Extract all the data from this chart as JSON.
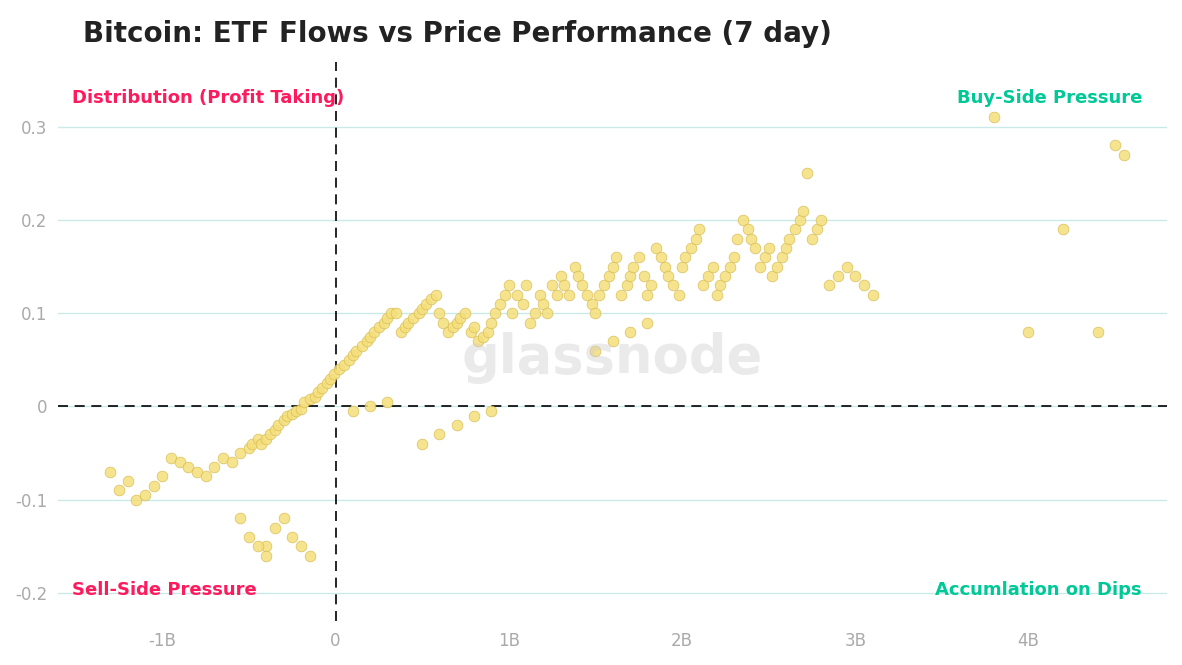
{
  "title": "Bitcoin: ETF Flows vs Price Performance (7 day)",
  "title_fontsize": 20,
  "title_fontweight": "bold",
  "background_color": "#ffffff",
  "grid_color": "#c8ebe8",
  "dot_color": "#f5df7a",
  "dot_edgecolor": "#d4b84a",
  "dot_alpha": 0.85,
  "dot_size": 60,
  "xlim": [
    -1600000000.0,
    4800000000.0
  ],
  "ylim": [
    -0.23,
    0.37
  ],
  "xticks": [
    -1000000000.0,
    0,
    1000000000.0,
    2000000000.0,
    3000000000.0,
    4000000000.0
  ],
  "xtick_labels": [
    "-1B",
    "0",
    "1B",
    "2B",
    "3B",
    "4B"
  ],
  "yticks": [
    -0.2,
    -0.1,
    0,
    0.1,
    0.2,
    0.3
  ],
  "ytick_labels": [
    "-0.2",
    "-0.1",
    "0",
    "0.1",
    "0.2",
    "0.3"
  ],
  "tick_fontsize": 12,
  "tick_color": "#aaaaaa",
  "quadrant_fontsize": 13,
  "quadrant_fontweight": "bold",
  "red_color": "#ff1a5e",
  "green_color": "#00c896",
  "watermark_text": "glassnode",
  "watermark_color": "#cccccc",
  "watermark_fontsize": 38,
  "watermark_alpha": 0.4,
  "scatter_x": [
    -1300000000.0,
    -1250000000.0,
    -1200000000.0,
    -1150000000.0,
    -1100000000.0,
    -1050000000.0,
    -1000000000.0,
    -950000000.0,
    -900000000.0,
    -850000000.0,
    -800000000.0,
    -750000000.0,
    -700000000.0,
    -650000000.0,
    -600000000.0,
    -550000000.0,
    -500000000.0,
    -480000000.0,
    -450000000.0,
    -430000000.0,
    -400000000.0,
    -380000000.0,
    -350000000.0,
    -330000000.0,
    -300000000.0,
    -280000000.0,
    -250000000.0,
    -230000000.0,
    -200000000.0,
    -180000000.0,
    -150000000.0,
    -120000000.0,
    -100000000.0,
    -80000000.0,
    -50000000.0,
    -30000000.0,
    -10000000.0,
    20000000.0,
    50000000.0,
    80000000.0,
    100000000.0,
    120000000.0,
    150000000.0,
    180000000.0,
    200000000.0,
    220000000.0,
    250000000.0,
    280000000.0,
    300000000.0,
    320000000.0,
    350000000.0,
    380000000.0,
    400000000.0,
    420000000.0,
    450000000.0,
    480000000.0,
    500000000.0,
    520000000.0,
    550000000.0,
    580000000.0,
    600000000.0,
    620000000.0,
    650000000.0,
    680000000.0,
    700000000.0,
    720000000.0,
    750000000.0,
    780000000.0,
    800000000.0,
    820000000.0,
    850000000.0,
    880000000.0,
    900000000.0,
    920000000.0,
    950000000.0,
    980000000.0,
    1000000000.0,
    1020000000.0,
    1050000000.0,
    1080000000.0,
    1100000000.0,
    1120000000.0,
    1150000000.0,
    1180000000.0,
    1200000000.0,
    1220000000.0,
    1250000000.0,
    1280000000.0,
    1300000000.0,
    1320000000.0,
    1350000000.0,
    1380000000.0,
    1400000000.0,
    1420000000.0,
    1450000000.0,
    1480000000.0,
    1500000000.0,
    1520000000.0,
    1550000000.0,
    1580000000.0,
    1600000000.0,
    1620000000.0,
    1650000000.0,
    1680000000.0,
    1700000000.0,
    1720000000.0,
    1750000000.0,
    1780000000.0,
    1800000000.0,
    1820000000.0,
    1850000000.0,
    1880000000.0,
    1900000000.0,
    1920000000.0,
    1950000000.0,
    1980000000.0,
    2000000000.0,
    2020000000.0,
    2050000000.0,
    2080000000.0,
    2100000000.0,
    2120000000.0,
    2150000000.0,
    2180000000.0,
    2200000000.0,
    2220000000.0,
    2250000000.0,
    2280000000.0,
    2300000000.0,
    2320000000.0,
    2350000000.0,
    2380000000.0,
    2400000000.0,
    2420000000.0,
    2450000000.0,
    2480000000.0,
    2500000000.0,
    2520000000.0,
    2550000000.0,
    2580000000.0,
    2600000000.0,
    2620000000.0,
    2650000000.0,
    2680000000.0,
    2700000000.0,
    2720000000.0,
    2750000000.0,
    2780000000.0,
    2800000000.0,
    2850000000.0,
    2900000000.0,
    2950000000.0,
    3000000000.0,
    3050000000.0,
    3100000000.0,
    3800000000.0,
    4000000000.0,
    4200000000.0,
    4400000000.0,
    4500000000.0,
    4550000000.0,
    -400000000.0,
    -350000000.0,
    -300000000.0,
    -250000000.0,
    -200000000.0,
    -150000000.0,
    500000000.0,
    600000000.0,
    700000000.0,
    800000000.0,
    900000000.0,
    -550000000.0,
    -500000000.0,
    -450000000.0,
    -400000000.0,
    1500000000.0,
    1600000000.0,
    1700000000.0,
    1800000000.0,
    100000000.0,
    200000000.0,
    300000000.0
  ],
  "scatter_y": [
    -0.07,
    -0.09,
    -0.08,
    -0.1,
    -0.095,
    -0.085,
    -0.075,
    -0.055,
    -0.06,
    -0.065,
    -0.07,
    -0.075,
    -0.065,
    -0.055,
    -0.06,
    -0.05,
    -0.045,
    -0.04,
    -0.035,
    -0.04,
    -0.035,
    -0.03,
    -0.025,
    -0.02,
    -0.015,
    -0.01,
    -0.008,
    -0.005,
    -0.003,
    0.005,
    0.008,
    0.01,
    0.015,
    0.02,
    0.025,
    0.03,
    0.035,
    0.04,
    0.045,
    0.05,
    0.055,
    0.06,
    0.065,
    0.07,
    0.075,
    0.08,
    0.085,
    0.09,
    0.095,
    0.1,
    0.1,
    0.08,
    0.085,
    0.09,
    0.095,
    0.1,
    0.105,
    0.11,
    0.115,
    0.12,
    0.1,
    0.09,
    0.08,
    0.085,
    0.09,
    0.095,
    0.1,
    0.08,
    0.085,
    0.07,
    0.075,
    0.08,
    0.09,
    0.1,
    0.11,
    0.12,
    0.13,
    0.1,
    0.12,
    0.11,
    0.13,
    0.09,
    0.1,
    0.12,
    0.11,
    0.1,
    0.13,
    0.12,
    0.14,
    0.13,
    0.12,
    0.15,
    0.14,
    0.13,
    0.12,
    0.11,
    0.1,
    0.12,
    0.13,
    0.14,
    0.15,
    0.16,
    0.12,
    0.13,
    0.14,
    0.15,
    0.16,
    0.14,
    0.12,
    0.13,
    0.17,
    0.16,
    0.15,
    0.14,
    0.13,
    0.12,
    0.15,
    0.16,
    0.17,
    0.18,
    0.19,
    0.13,
    0.14,
    0.15,
    0.12,
    0.13,
    0.14,
    0.15,
    0.16,
    0.18,
    0.2,
    0.19,
    0.18,
    0.17,
    0.15,
    0.16,
    0.17,
    0.14,
    0.15,
    0.16,
    0.17,
    0.18,
    0.19,
    0.2,
    0.21,
    0.25,
    0.18,
    0.19,
    0.2,
    0.13,
    0.14,
    0.15,
    0.14,
    0.13,
    0.12,
    0.31,
    0.08,
    0.19,
    0.08,
    0.28,
    0.27,
    -0.15,
    -0.13,
    -0.12,
    -0.14,
    -0.15,
    -0.16,
    -0.04,
    -0.03,
    -0.02,
    -0.01,
    -0.005,
    -0.12,
    -0.14,
    -0.15,
    -0.16,
    0.06,
    0.07,
    0.08,
    0.09,
    -0.005,
    0.0,
    0.005
  ]
}
